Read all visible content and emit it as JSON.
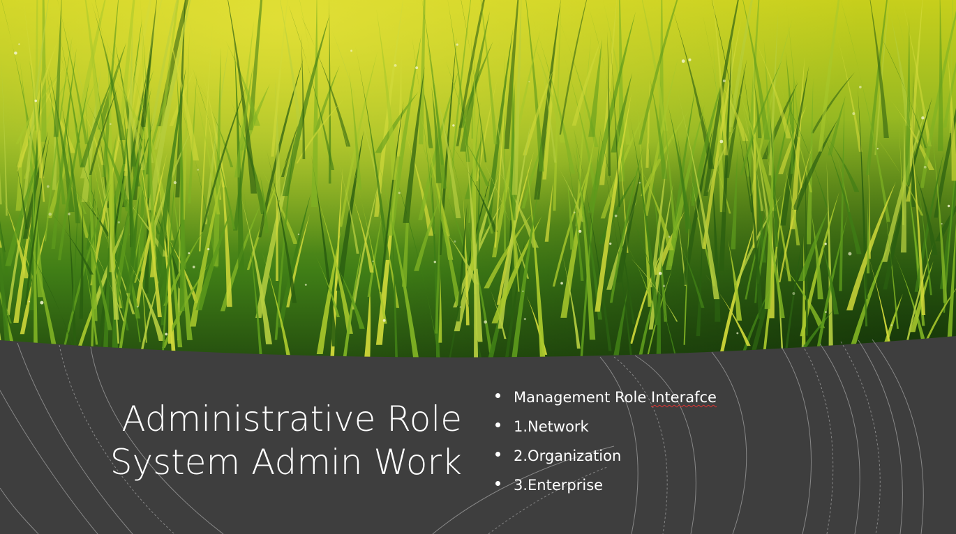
{
  "slide": {
    "title_lines": [
      "Administrative Role",
      "System Admin Work"
    ],
    "bullets": [
      {
        "prefix": "Management Role ",
        "flagged": "Interafce"
      },
      {
        "prefix": "1.Network",
        "flagged": ""
      },
      {
        "prefix": "2.Organization",
        "flagged": ""
      },
      {
        "prefix": "3.Enterprise",
        "flagged": ""
      }
    ]
  },
  "colors": {
    "panel": "#3e3e3e",
    "text": "#ffffff",
    "grass_light": "#c9d21a",
    "grass_mid": "#7fb224",
    "grass_dark": "#1f4a10",
    "spellcheck": "#d33333"
  },
  "icons": {
    "bullet": "bullet-dot-icon"
  }
}
